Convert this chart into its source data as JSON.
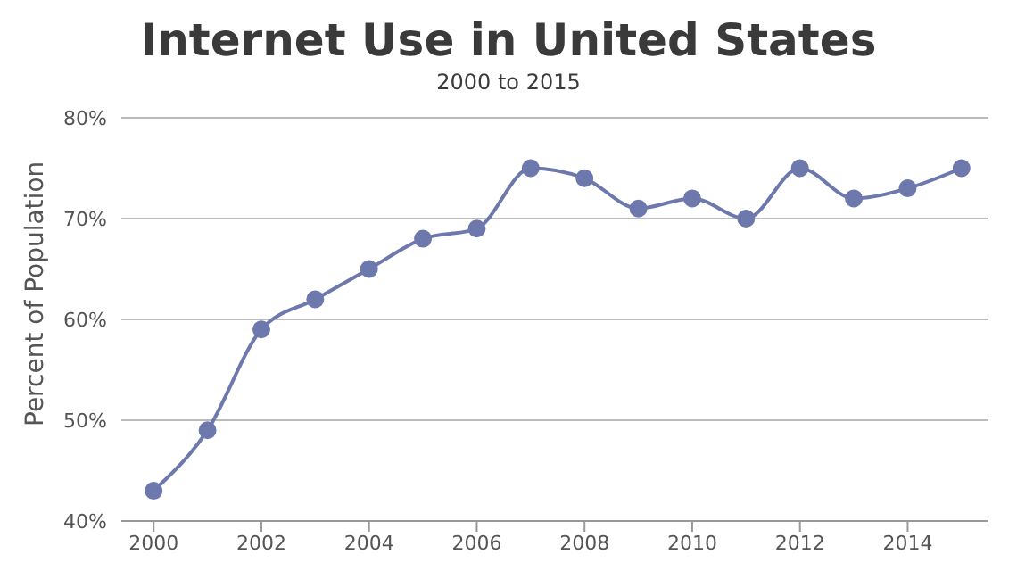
{
  "chart_data": {
    "type": "line",
    "title": "Internet Use in United States",
    "subtitle": "2000 to 2015",
    "ylabel": "Percent of Population",
    "x": [
      2000,
      2001,
      2002,
      2003,
      2004,
      2005,
      2006,
      2007,
      2008,
      2009,
      2010,
      2011,
      2012,
      2013,
      2014,
      2015
    ],
    "series": [
      {
        "color": "#6d78ad",
        "values": [
          43,
          49,
          59,
          62,
          65,
          68,
          69,
          75,
          74,
          71,
          72,
          70,
          75,
          72,
          73,
          75
        ]
      }
    ],
    "xlim": [
      1999.4,
      2015.5
    ],
    "xticks": [
      2000,
      2002,
      2004,
      2006,
      2008,
      2010,
      2012,
      2014
    ],
    "ylim": [
      40,
      80
    ],
    "yticks": [
      {
        "value": 40,
        "label": "40%"
      },
      {
        "value": 50,
        "label": "50%"
      },
      {
        "value": 60,
        "label": "60%"
      },
      {
        "value": 70,
        "label": "70%"
      },
      {
        "value": 80,
        "label": "80%"
      }
    ],
    "grid": "y",
    "legend": false,
    "marker": "circle",
    "line_style": "solid"
  }
}
